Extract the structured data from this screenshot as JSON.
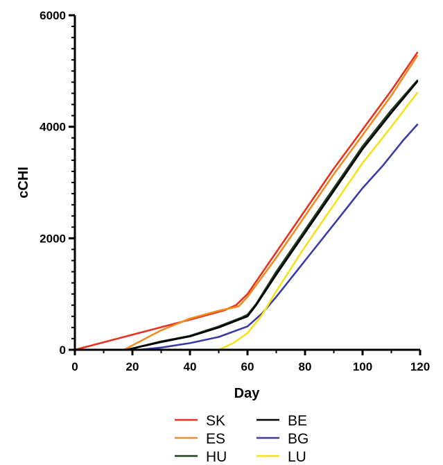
{
  "chart_data": {
    "type": "line",
    "xlabel": "Day",
    "ylabel": "cCHI",
    "xlim": [
      0,
      120
    ],
    "ylim": [
      0,
      6000
    ],
    "x_ticks": [
      0,
      20,
      40,
      60,
      80,
      100,
      120
    ],
    "y_ticks": [
      0,
      2000,
      4000,
      6000
    ],
    "grid": false,
    "legend_position": "bottom",
    "series": [
      {
        "name": "SK",
        "color": "#E8301E",
        "points": [
          [
            0,
            0
          ],
          [
            20,
            270
          ],
          [
            40,
            540
          ],
          [
            52,
            710
          ],
          [
            56,
            800
          ],
          [
            60,
            1000
          ],
          [
            70,
            1750
          ],
          [
            80,
            2500
          ],
          [
            90,
            3250
          ],
          [
            100,
            3950
          ],
          [
            110,
            4650
          ],
          [
            119,
            5330
          ]
        ]
      },
      {
        "name": "ES",
        "color": "#F28A1E",
        "points": [
          [
            0,
            0
          ],
          [
            17,
            0
          ],
          [
            20,
            80
          ],
          [
            30,
            350
          ],
          [
            40,
            560
          ],
          [
            50,
            700
          ],
          [
            57,
            780
          ],
          [
            60,
            950
          ],
          [
            70,
            1650
          ],
          [
            80,
            2400
          ],
          [
            90,
            3150
          ],
          [
            100,
            3850
          ],
          [
            110,
            4560
          ],
          [
            119,
            5270
          ]
        ]
      },
      {
        "name": "HU",
        "color": "#1F3D1F",
        "points": [
          [
            0,
            0
          ],
          [
            18,
            0
          ],
          [
            30,
            150
          ],
          [
            40,
            250
          ],
          [
            50,
            420
          ],
          [
            58,
            580
          ],
          [
            60,
            630
          ],
          [
            63,
            820
          ],
          [
            70,
            1400
          ],
          [
            80,
            2150
          ],
          [
            90,
            2900
          ],
          [
            100,
            3650
          ],
          [
            110,
            4300
          ],
          [
            119,
            4830
          ]
        ]
      },
      {
        "name": "BE",
        "color": "#000000",
        "points": [
          [
            0,
            0
          ],
          [
            18,
            0
          ],
          [
            30,
            140
          ],
          [
            40,
            240
          ],
          [
            50,
            400
          ],
          [
            58,
            560
          ],
          [
            60,
            600
          ],
          [
            63,
            800
          ],
          [
            70,
            1350
          ],
          [
            80,
            2100
          ],
          [
            90,
            2850
          ],
          [
            100,
            3600
          ],
          [
            110,
            4250
          ],
          [
            119,
            4810
          ]
        ]
      },
      {
        "name": "BG",
        "color": "#3A3AA8",
        "points": [
          [
            0,
            0
          ],
          [
            22,
            0
          ],
          [
            30,
            40
          ],
          [
            40,
            120
          ],
          [
            50,
            230
          ],
          [
            60,
            420
          ],
          [
            65,
            650
          ],
          [
            70,
            950
          ],
          [
            80,
            1600
          ],
          [
            90,
            2250
          ],
          [
            100,
            2900
          ],
          [
            107,
            3300
          ],
          [
            114,
            3750
          ],
          [
            119,
            4040
          ]
        ]
      },
      {
        "name": "LU",
        "color": "#F5E21B",
        "points": [
          [
            0,
            0
          ],
          [
            50,
            0
          ],
          [
            55,
            120
          ],
          [
            60,
            300
          ],
          [
            65,
            620
          ],
          [
            70,
            1050
          ],
          [
            80,
            1850
          ],
          [
            90,
            2600
          ],
          [
            100,
            3350
          ],
          [
            110,
            4000
          ],
          [
            119,
            4610
          ]
        ]
      }
    ]
  }
}
